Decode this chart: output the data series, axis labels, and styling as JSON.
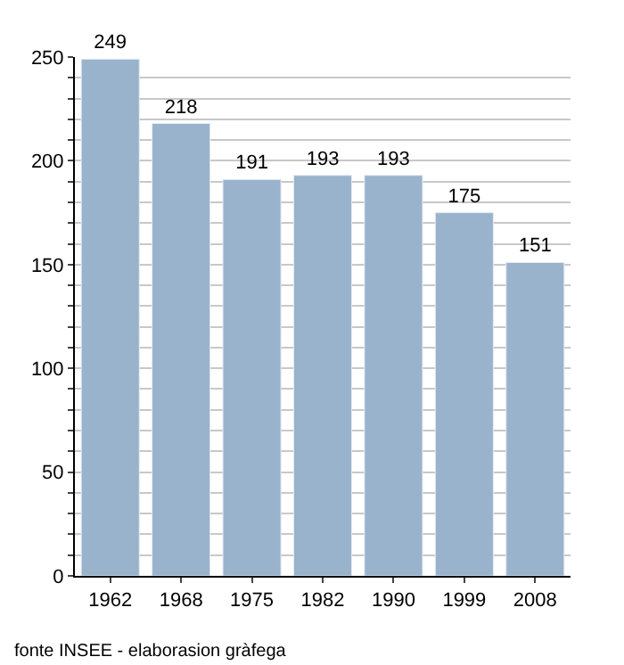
{
  "chart_data": {
    "type": "bar",
    "categories": [
      "1962",
      "1968",
      "1975",
      "1982",
      "1990",
      "1999",
      "2008"
    ],
    "values": [
      249,
      218,
      191,
      193,
      193,
      175,
      151
    ],
    "color": "#9ab3cc",
    "data_labels": true,
    "grid": "y",
    "ylim": [
      0,
      250
    ],
    "yticks": [
      0,
      {
        "value": 10,
        "label": null
      },
      {
        "value": 20,
        "label": null
      },
      {
        "value": 30,
        "label": null
      },
      {
        "value": 40,
        "label": null
      },
      50,
      {
        "value": 60,
        "label": null
      },
      {
        "value": 70,
        "label": null
      },
      {
        "value": 80,
        "label": null
      },
      {
        "value": 90,
        "label": null
      },
      100,
      {
        "value": 110,
        "label": null
      },
      {
        "value": 120,
        "label": null
      },
      {
        "value": 130,
        "label": null
      },
      {
        "value": 140,
        "label": null
      },
      150,
      {
        "value": 160,
        "label": null
      },
      {
        "value": 170,
        "label": null
      },
      {
        "value": 180,
        "label": null
      },
      {
        "value": 190,
        "label": null
      },
      200,
      {
        "value": 210,
        "label": null
      },
      {
        "value": 220,
        "label": null
      },
      {
        "value": 230,
        "label": null
      },
      {
        "value": 240,
        "label": null
      },
      250
    ],
    "annotations": [
      "fonte INSEE - elaborasion gràfega"
    ]
  }
}
